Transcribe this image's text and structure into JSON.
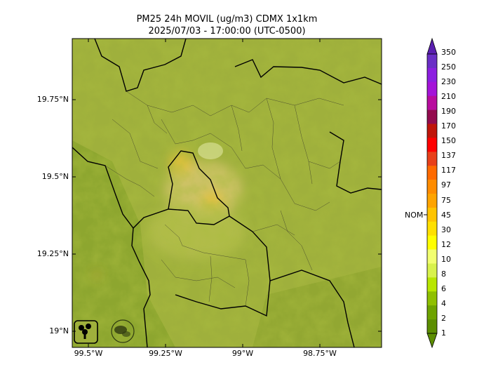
{
  "title_line1": "PM25 24h MOVIL (ug/m3) CDMX 1x1km",
  "title_line2": "2025/07/03 - 17:00:00 (UTC-0500)",
  "lat_labels": [
    "19.75°N",
    "19.5°N",
    "19.25°N",
    "19°N"
  ],
  "lon_labels": [
    "99.5°W",
    "99.25°W",
    "99°W",
    "98.75°W"
  ],
  "colorbar": {
    "labels": [
      "350",
      "250",
      "230",
      "210",
      "190",
      "170",
      "150",
      "137",
      "117",
      "97",
      "75",
      "45",
      "30",
      "12",
      "10",
      "8",
      "6",
      "4",
      "2",
      "1"
    ],
    "colors": [
      "#6a2fc6",
      "#8c1fe0",
      "#a414d8",
      "#b80c9e",
      "#930b4e",
      "#c0150a",
      "#ff0000",
      "#e8401a",
      "#ff6a00",
      "#ff8c00",
      "#ffa400",
      "#ffc400",
      "#ffe000",
      "#ffff00",
      "#f2ff70",
      "#d8f24c",
      "#b8e600",
      "#8fc000",
      "#6ea300",
      "#5c8e00"
    ],
    "nom_label": "NOM"
  },
  "map_colors": {
    "base": "#9fb03c",
    "dark": "#6f8a1c",
    "light": "#bcc24a",
    "urban": "#d8c860"
  }
}
